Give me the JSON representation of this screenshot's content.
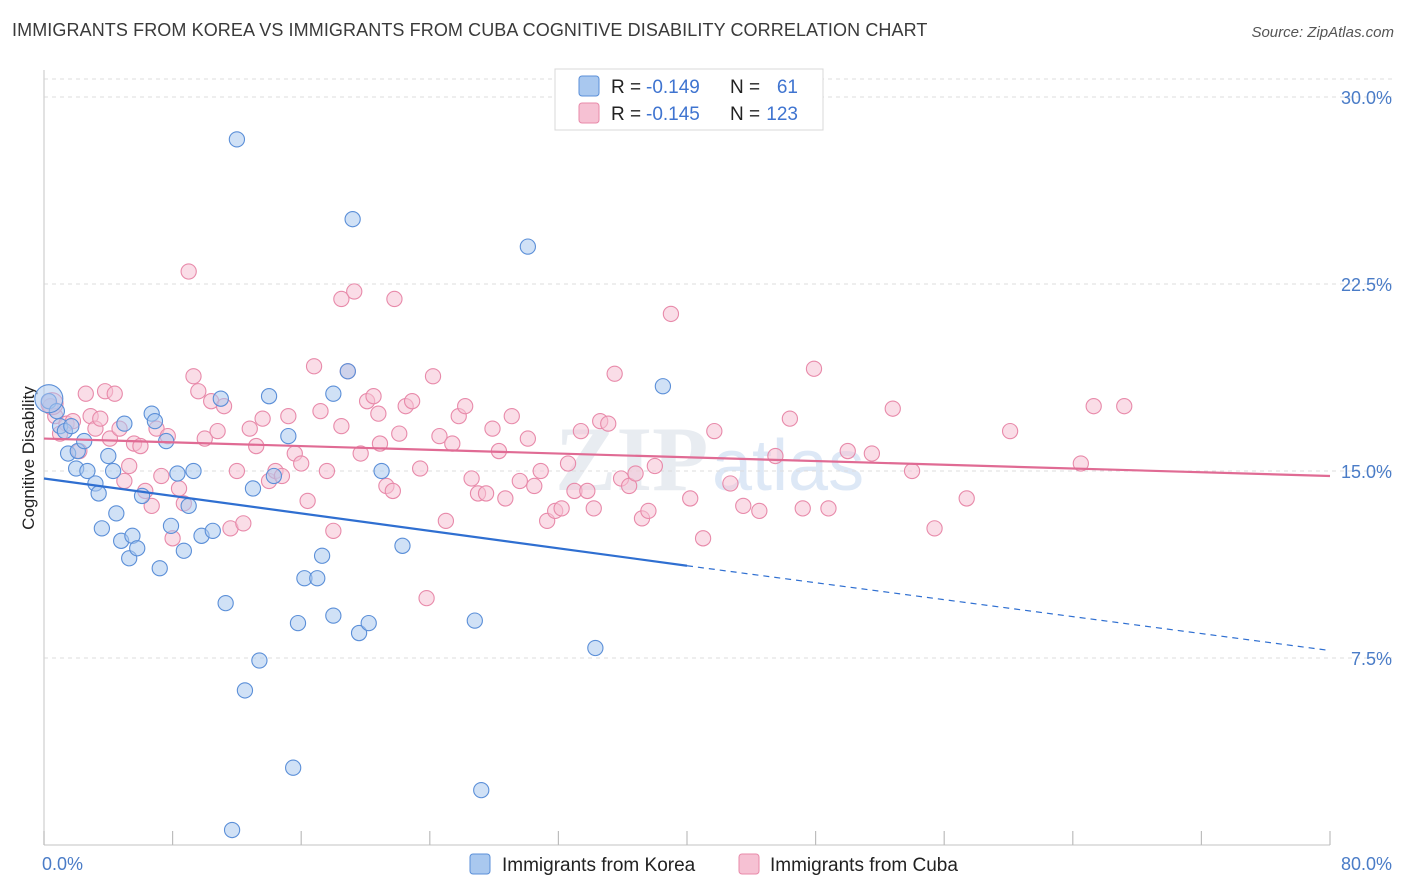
{
  "header": {
    "title": "IMMIGRANTS FROM KOREA VS IMMIGRANTS FROM CUBA COGNITIVE DISABILITY CORRELATION CHART",
    "source": "Source: ZipAtlas.com"
  },
  "watermark": {
    "zip": "ZIP",
    "atlas": "atlas"
  },
  "legend_top": {
    "rows": [
      {
        "r_label": "R =",
        "r_value": "-0.149",
        "n_label": "N =",
        "n_value": "61"
      },
      {
        "r_label": "R =",
        "r_value": "-0.145",
        "n_label": "N =",
        "n_value": "123"
      }
    ]
  },
  "legend_bottom": {
    "items": [
      {
        "label": "Immigrants from Korea"
      },
      {
        "label": "Immigrants from Cuba"
      }
    ]
  },
  "colors": {
    "korea_fill": "#a9c8ef",
    "korea_stroke": "#5b8fd8",
    "korea_line": "#2f6fd1",
    "cuba_fill": "#f6c1d3",
    "cuba_stroke": "#e88aaa",
    "cuba_line": "#e06b94",
    "axis_text": "#4a7cc7",
    "grid": "#dddddd"
  },
  "chart_data": {
    "type": "scatter",
    "title": "IMMIGRANTS FROM KOREA VS IMMIGRANTS FROM CUBA COGNITIVE DISABILITY CORRELATION CHART",
    "xlabel": "",
    "ylabel": "Cognitive Disability",
    "xlim": [
      0,
      80
    ],
    "ylim": [
      0,
      31
    ],
    "x_tick_labels": [
      "0.0%",
      "80.0%"
    ],
    "y_ticks": [
      7.5,
      15.0,
      22.5,
      30.0
    ],
    "y_tick_labels": [
      "7.5%",
      "15.0%",
      "22.5%",
      "30.0%"
    ],
    "grid": "horizontal dashed",
    "legend": "top-center",
    "series": [
      {
        "name": "Immigrants from Korea",
        "r": -0.149,
        "n": 61,
        "trend": {
          "x0": 0,
          "y0": 14.7,
          "x1": 40,
          "y1": 11.2,
          "dashed_to_x": 80,
          "dashed_to_y": 7.8
        },
        "points": [
          [
            0.3,
            17.8
          ],
          [
            0.8,
            17.4
          ],
          [
            1.0,
            16.8
          ],
          [
            1.3,
            16.6
          ],
          [
            1.5,
            15.7
          ],
          [
            1.7,
            16.8
          ],
          [
            2.0,
            15.1
          ],
          [
            2.1,
            15.8
          ],
          [
            2.5,
            16.2
          ],
          [
            2.7,
            15.0
          ],
          [
            3.2,
            14.5
          ],
          [
            3.4,
            14.1
          ],
          [
            3.6,
            12.7
          ],
          [
            4.0,
            15.6
          ],
          [
            4.3,
            15.0
          ],
          [
            4.5,
            13.3
          ],
          [
            4.8,
            12.2
          ],
          [
            5.0,
            16.9
          ],
          [
            5.3,
            11.5
          ],
          [
            5.5,
            12.4
          ],
          [
            5.8,
            11.9
          ],
          [
            6.1,
            14.0
          ],
          [
            6.7,
            17.3
          ],
          [
            6.9,
            17.0
          ],
          [
            7.2,
            11.1
          ],
          [
            7.6,
            16.2
          ],
          [
            7.9,
            12.8
          ],
          [
            8.3,
            14.9
          ],
          [
            8.7,
            11.8
          ],
          [
            9.0,
            13.6
          ],
          [
            9.3,
            15.0
          ],
          [
            9.8,
            12.4
          ],
          [
            10.5,
            12.6
          ],
          [
            11.0,
            17.9
          ],
          [
            11.3,
            9.7
          ],
          [
            11.7,
            0.6
          ],
          [
            12.0,
            28.3
          ],
          [
            12.5,
            6.2
          ],
          [
            13.0,
            14.3
          ],
          [
            13.4,
            7.4
          ],
          [
            14.0,
            18.0
          ],
          [
            14.3,
            14.8
          ],
          [
            15.2,
            16.4
          ],
          [
            15.5,
            3.1
          ],
          [
            15.8,
            8.9
          ],
          [
            16.2,
            10.7
          ],
          [
            17.0,
            10.7
          ],
          [
            17.3,
            11.6
          ],
          [
            18.0,
            9.2
          ],
          [
            18.9,
            19.0
          ],
          [
            19.2,
            25.1
          ],
          [
            19.6,
            8.5
          ],
          [
            20.2,
            8.9
          ],
          [
            21.0,
            15.0
          ],
          [
            22.3,
            12.0
          ],
          [
            26.8,
            9.0
          ],
          [
            27.2,
            2.2
          ],
          [
            30.1,
            24.0
          ],
          [
            34.3,
            7.9
          ],
          [
            38.5,
            18.4
          ],
          [
            18.0,
            18.1
          ]
        ]
      },
      {
        "name": "Immigrants from Cuba",
        "r": -0.145,
        "n": 123,
        "trend": {
          "x0": 0,
          "y0": 16.3,
          "x1": 80,
          "y1": 14.8
        },
        "points": [
          [
            0.4,
            17.6
          ],
          [
            0.7,
            17.2
          ],
          [
            1.0,
            16.5
          ],
          [
            1.4,
            16.9
          ],
          [
            1.8,
            17.0
          ],
          [
            2.2,
            15.8
          ],
          [
            2.6,
            18.1
          ],
          [
            2.9,
            17.2
          ],
          [
            3.2,
            16.7
          ],
          [
            3.5,
            17.1
          ],
          [
            3.8,
            18.2
          ],
          [
            4.1,
            16.3
          ],
          [
            4.4,
            18.1
          ],
          [
            4.7,
            16.7
          ],
          [
            5.0,
            14.6
          ],
          [
            5.3,
            15.2
          ],
          [
            5.6,
            16.1
          ],
          [
            6.0,
            16.0
          ],
          [
            6.3,
            14.2
          ],
          [
            6.7,
            13.6
          ],
          [
            7.0,
            16.7
          ],
          [
            7.3,
            14.8
          ],
          [
            7.7,
            16.4
          ],
          [
            8.0,
            12.3
          ],
          [
            8.4,
            14.3
          ],
          [
            8.7,
            13.7
          ],
          [
            9.0,
            23.0
          ],
          [
            9.3,
            18.8
          ],
          [
            9.6,
            18.2
          ],
          [
            10.0,
            16.3
          ],
          [
            10.4,
            17.8
          ],
          [
            10.8,
            16.6
          ],
          [
            11.2,
            17.6
          ],
          [
            11.6,
            12.7
          ],
          [
            12.0,
            15.0
          ],
          [
            12.4,
            12.9
          ],
          [
            12.8,
            16.7
          ],
          [
            13.2,
            16.0
          ],
          [
            13.6,
            17.1
          ],
          [
            14.0,
            14.6
          ],
          [
            14.4,
            15.0
          ],
          [
            14.8,
            14.8
          ],
          [
            15.2,
            17.2
          ],
          [
            15.6,
            15.7
          ],
          [
            16.0,
            15.3
          ],
          [
            16.4,
            13.8
          ],
          [
            16.8,
            19.2
          ],
          [
            17.2,
            17.4
          ],
          [
            17.6,
            15.0
          ],
          [
            18.0,
            12.6
          ],
          [
            18.5,
            16.8
          ],
          [
            18.9,
            19.0
          ],
          [
            19.3,
            22.2
          ],
          [
            19.7,
            15.7
          ],
          [
            20.1,
            17.8
          ],
          [
            20.5,
            18.0
          ],
          [
            20.9,
            16.1
          ],
          [
            21.3,
            14.4
          ],
          [
            21.7,
            14.2
          ],
          [
            22.1,
            16.5
          ],
          [
            22.5,
            17.6
          ],
          [
            22.9,
            17.8
          ],
          [
            23.4,
            15.1
          ],
          [
            23.8,
            9.9
          ],
          [
            24.2,
            18.8
          ],
          [
            24.6,
            16.4
          ],
          [
            25.0,
            13.0
          ],
          [
            25.4,
            16.1
          ],
          [
            25.8,
            17.2
          ],
          [
            26.2,
            17.6
          ],
          [
            26.6,
            14.7
          ],
          [
            27.0,
            14.1
          ],
          [
            27.5,
            14.1
          ],
          [
            27.9,
            16.7
          ],
          [
            28.3,
            15.8
          ],
          [
            28.7,
            13.9
          ],
          [
            29.1,
            17.2
          ],
          [
            29.6,
            14.6
          ],
          [
            30.1,
            16.3
          ],
          [
            30.5,
            14.4
          ],
          [
            30.9,
            15.0
          ],
          [
            31.3,
            13.0
          ],
          [
            31.8,
            13.4
          ],
          [
            32.2,
            13.5
          ],
          [
            32.6,
            15.3
          ],
          [
            33.0,
            14.2
          ],
          [
            33.4,
            16.6
          ],
          [
            33.8,
            14.2
          ],
          [
            34.2,
            13.5
          ],
          [
            34.6,
            17.0
          ],
          [
            35.1,
            16.9
          ],
          [
            35.5,
            18.9
          ],
          [
            35.9,
            14.7
          ],
          [
            36.4,
            14.4
          ],
          [
            36.8,
            14.9
          ],
          [
            37.2,
            13.1
          ],
          [
            37.6,
            13.4
          ],
          [
            38.0,
            15.2
          ],
          [
            39.0,
            21.3
          ],
          [
            40.2,
            13.9
          ],
          [
            41.0,
            12.3
          ],
          [
            41.7,
            16.6
          ],
          [
            42.7,
            14.5
          ],
          [
            43.5,
            13.6
          ],
          [
            44.5,
            13.4
          ],
          [
            45.5,
            15.6
          ],
          [
            46.4,
            17.1
          ],
          [
            47.2,
            13.5
          ],
          [
            47.9,
            19.1
          ],
          [
            48.8,
            13.5
          ],
          [
            50.0,
            15.8
          ],
          [
            51.5,
            15.7
          ],
          [
            52.8,
            17.5
          ],
          [
            54.0,
            15.0
          ],
          [
            55.4,
            12.7
          ],
          [
            57.4,
            13.9
          ],
          [
            60.1,
            16.6
          ],
          [
            64.5,
            15.3
          ],
          [
            65.3,
            17.6
          ],
          [
            67.2,
            17.6
          ],
          [
            21.8,
            21.9
          ],
          [
            18.5,
            21.9
          ],
          [
            20.8,
            17.3
          ]
        ]
      }
    ]
  }
}
